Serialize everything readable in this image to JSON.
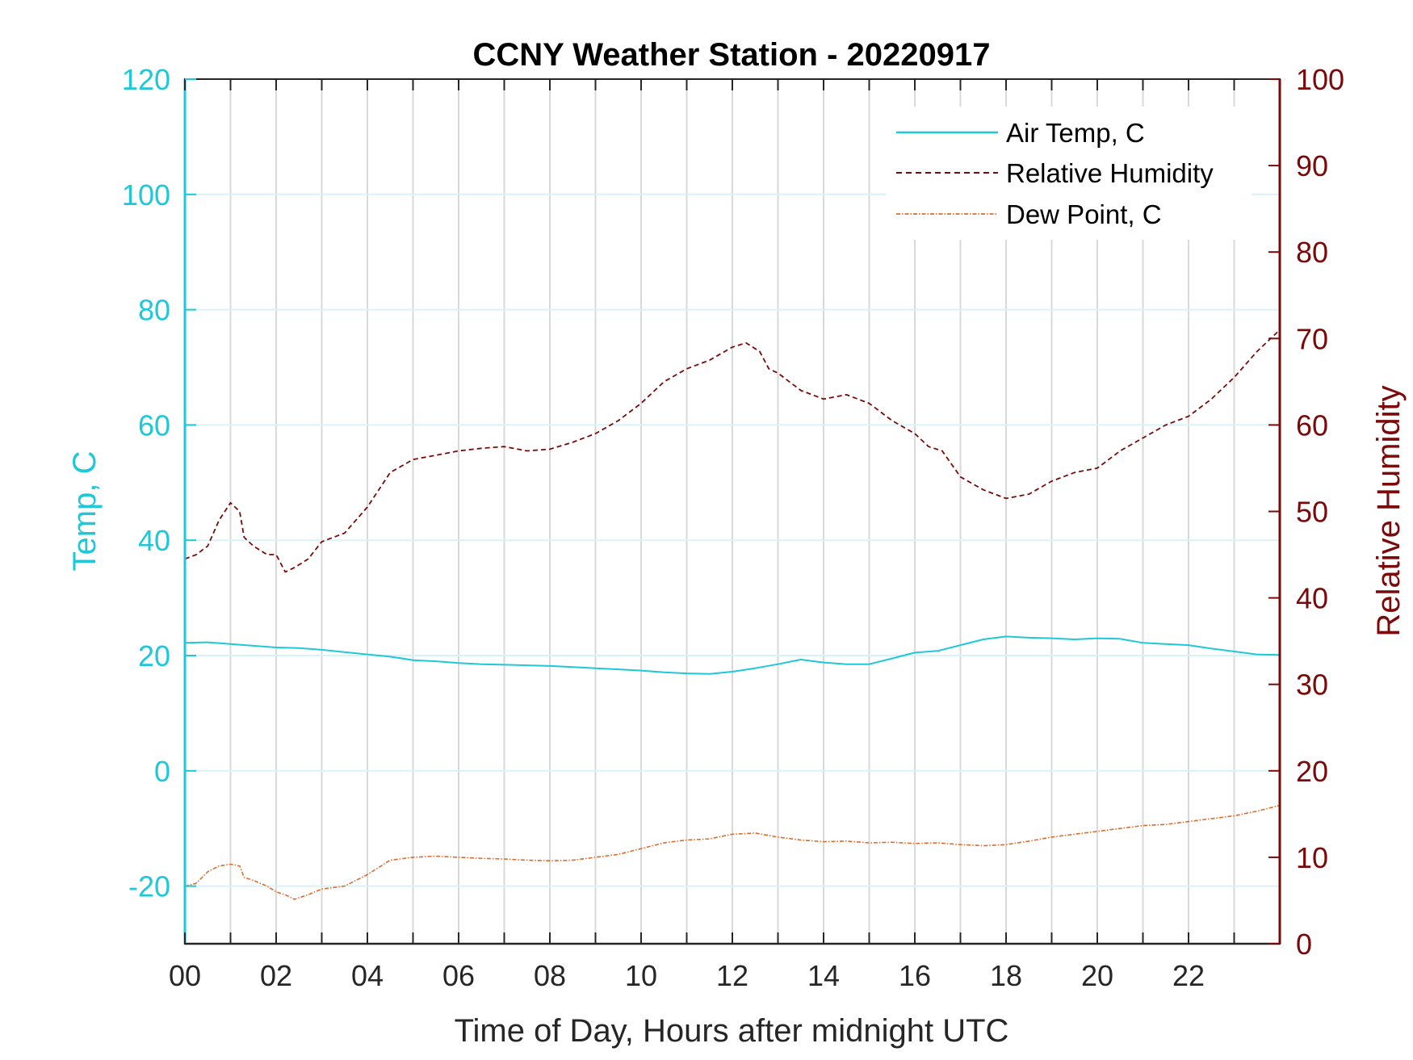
{
  "chart_data": {
    "type": "line",
    "title": "CCNY Weather Station - 20220917",
    "xlabel": "Time of Day, Hours after midnight UTC",
    "ylabel_left": "Temp, C",
    "ylabel_right": "Relative Humidity",
    "xlim": [
      0,
      24
    ],
    "ylim_left": [
      -30,
      120
    ],
    "ylim_right": [
      0,
      100
    ],
    "x_ticks": [
      0,
      2,
      4,
      6,
      8,
      10,
      12,
      14,
      16,
      18,
      20,
      22
    ],
    "x_tick_labels": [
      "00",
      "02",
      "04",
      "06",
      "08",
      "10",
      "12",
      "14",
      "16",
      "18",
      "20",
      "22"
    ],
    "y_left_ticks": [
      -20,
      0,
      20,
      40,
      60,
      80,
      100,
      120
    ],
    "y_right_ticks": [
      0,
      10,
      20,
      30,
      40,
      50,
      60,
      70,
      80,
      90,
      100
    ],
    "grid": "vertical lines every hour; horizontal lines at left-axis ticks",
    "legend_position": "top-right",
    "colors": {
      "air_temp": "#1ec8d8",
      "humidity": "#7a0a0a",
      "dew_point": "#e06a2c",
      "left_axis": "#1ec8d8",
      "right_axis": "#7a0a0a"
    },
    "series": [
      {
        "name": "Air Temp, C",
        "axis": "left",
        "style": "solid",
        "x": [
          0,
          0.5,
          1,
          1.5,
          2,
          2.5,
          3,
          3.5,
          4,
          4.5,
          5,
          5.5,
          6,
          6.5,
          7,
          7.5,
          8,
          8.5,
          9,
          9.5,
          10,
          10.5,
          11,
          11.5,
          12,
          12.5,
          13,
          13.5,
          14,
          14.5,
          15,
          15.5,
          16,
          16.5,
          17,
          17.5,
          18,
          18.5,
          19,
          19.5,
          20,
          20.5,
          21,
          21.5,
          22,
          22.5,
          23,
          23.5,
          24
        ],
        "y": [
          22.2,
          22.3,
          22.0,
          21.7,
          21.4,
          21.3,
          21.0,
          20.6,
          20.2,
          19.8,
          19.2,
          19.0,
          18.7,
          18.5,
          18.4,
          18.3,
          18.2,
          18.0,
          17.8,
          17.6,
          17.4,
          17.1,
          16.9,
          16.8,
          17.2,
          17.8,
          18.5,
          19.3,
          18.8,
          18.5,
          18.5,
          19.5,
          20.5,
          20.8,
          21.8,
          22.8,
          23.3,
          23.1,
          23.0,
          22.8,
          23.0,
          22.9,
          22.2,
          22.0,
          21.8,
          21.2,
          20.7,
          20.2,
          20.1
        ]
      },
      {
        "name": "Relative Humidity",
        "axis": "right",
        "style": "dashed",
        "x": [
          0,
          0.25,
          0.5,
          0.75,
          1,
          1.2,
          1.3,
          1.5,
          1.8,
          2,
          2.2,
          2.4,
          2.7,
          3,
          3.5,
          4,
          4.5,
          5,
          5.5,
          6,
          6.5,
          7,
          7.5,
          8,
          8.5,
          9,
          9.5,
          10,
          10.5,
          11,
          11.5,
          12,
          12.3,
          12.6,
          12.8,
          13,
          13.5,
          14,
          14.5,
          15,
          15.5,
          16,
          16.3,
          16.6,
          17,
          17.5,
          18,
          18.5,
          19,
          19.5,
          20,
          20.5,
          21,
          21.5,
          22,
          22.5,
          23,
          23.5,
          24
        ],
        "y": [
          44.5,
          45.0,
          46.0,
          49.0,
          51.0,
          50.0,
          47.0,
          46.0,
          45.0,
          45.0,
          43.0,
          43.5,
          44.5,
          46.5,
          47.5,
          50.5,
          54.5,
          56.0,
          56.5,
          57.0,
          57.3,
          57.5,
          57.0,
          57.2,
          58.0,
          59.0,
          60.5,
          62.5,
          65.0,
          66.5,
          67.5,
          69.0,
          69.5,
          68.5,
          66.5,
          66.0,
          64.0,
          63.0,
          63.5,
          62.5,
          60.5,
          59.0,
          57.5,
          57.0,
          54.0,
          52.5,
          51.5,
          52.0,
          53.5,
          54.5,
          55.0,
          57.0,
          58.5,
          60.0,
          61.0,
          63.0,
          65.5,
          68.5,
          71.0
        ]
      },
      {
        "name": "Dew Point, C",
        "axis": "left",
        "style": "dash-dot",
        "x": [
          0,
          0.25,
          0.5,
          0.75,
          1,
          1.2,
          1.3,
          1.5,
          1.8,
          2,
          2.2,
          2.4,
          2.7,
          3,
          3.5,
          4,
          4.5,
          5,
          5.5,
          6,
          6.5,
          7,
          7.5,
          8,
          8.5,
          9,
          9.5,
          10,
          10.5,
          11,
          11.5,
          12,
          12.5,
          13,
          13.5,
          14,
          14.5,
          15,
          15.5,
          16,
          16.5,
          17,
          17.5,
          18,
          18.5,
          19,
          19.5,
          20,
          20.5,
          21,
          21.5,
          22,
          22.5,
          23,
          23.5,
          24
        ],
        "y": [
          -20.0,
          -19.5,
          -17.5,
          -16.5,
          -16.2,
          -16.5,
          -18.5,
          -19.0,
          -20.0,
          -21.0,
          -21.5,
          -22.3,
          -21.5,
          -20.5,
          -20.0,
          -18.0,
          -15.5,
          -15.0,
          -14.8,
          -15.0,
          -15.2,
          -15.3,
          -15.5,
          -15.6,
          -15.5,
          -15.0,
          -14.5,
          -13.5,
          -12.5,
          -12.0,
          -11.8,
          -11.0,
          -10.8,
          -11.5,
          -12.0,
          -12.3,
          -12.2,
          -12.5,
          -12.4,
          -12.6,
          -12.5,
          -12.8,
          -13.0,
          -12.8,
          -12.2,
          -11.5,
          -11.0,
          -10.5,
          -10.0,
          -9.5,
          -9.3,
          -8.8,
          -8.3,
          -7.8,
          -7.0,
          -6.0
        ]
      }
    ]
  }
}
